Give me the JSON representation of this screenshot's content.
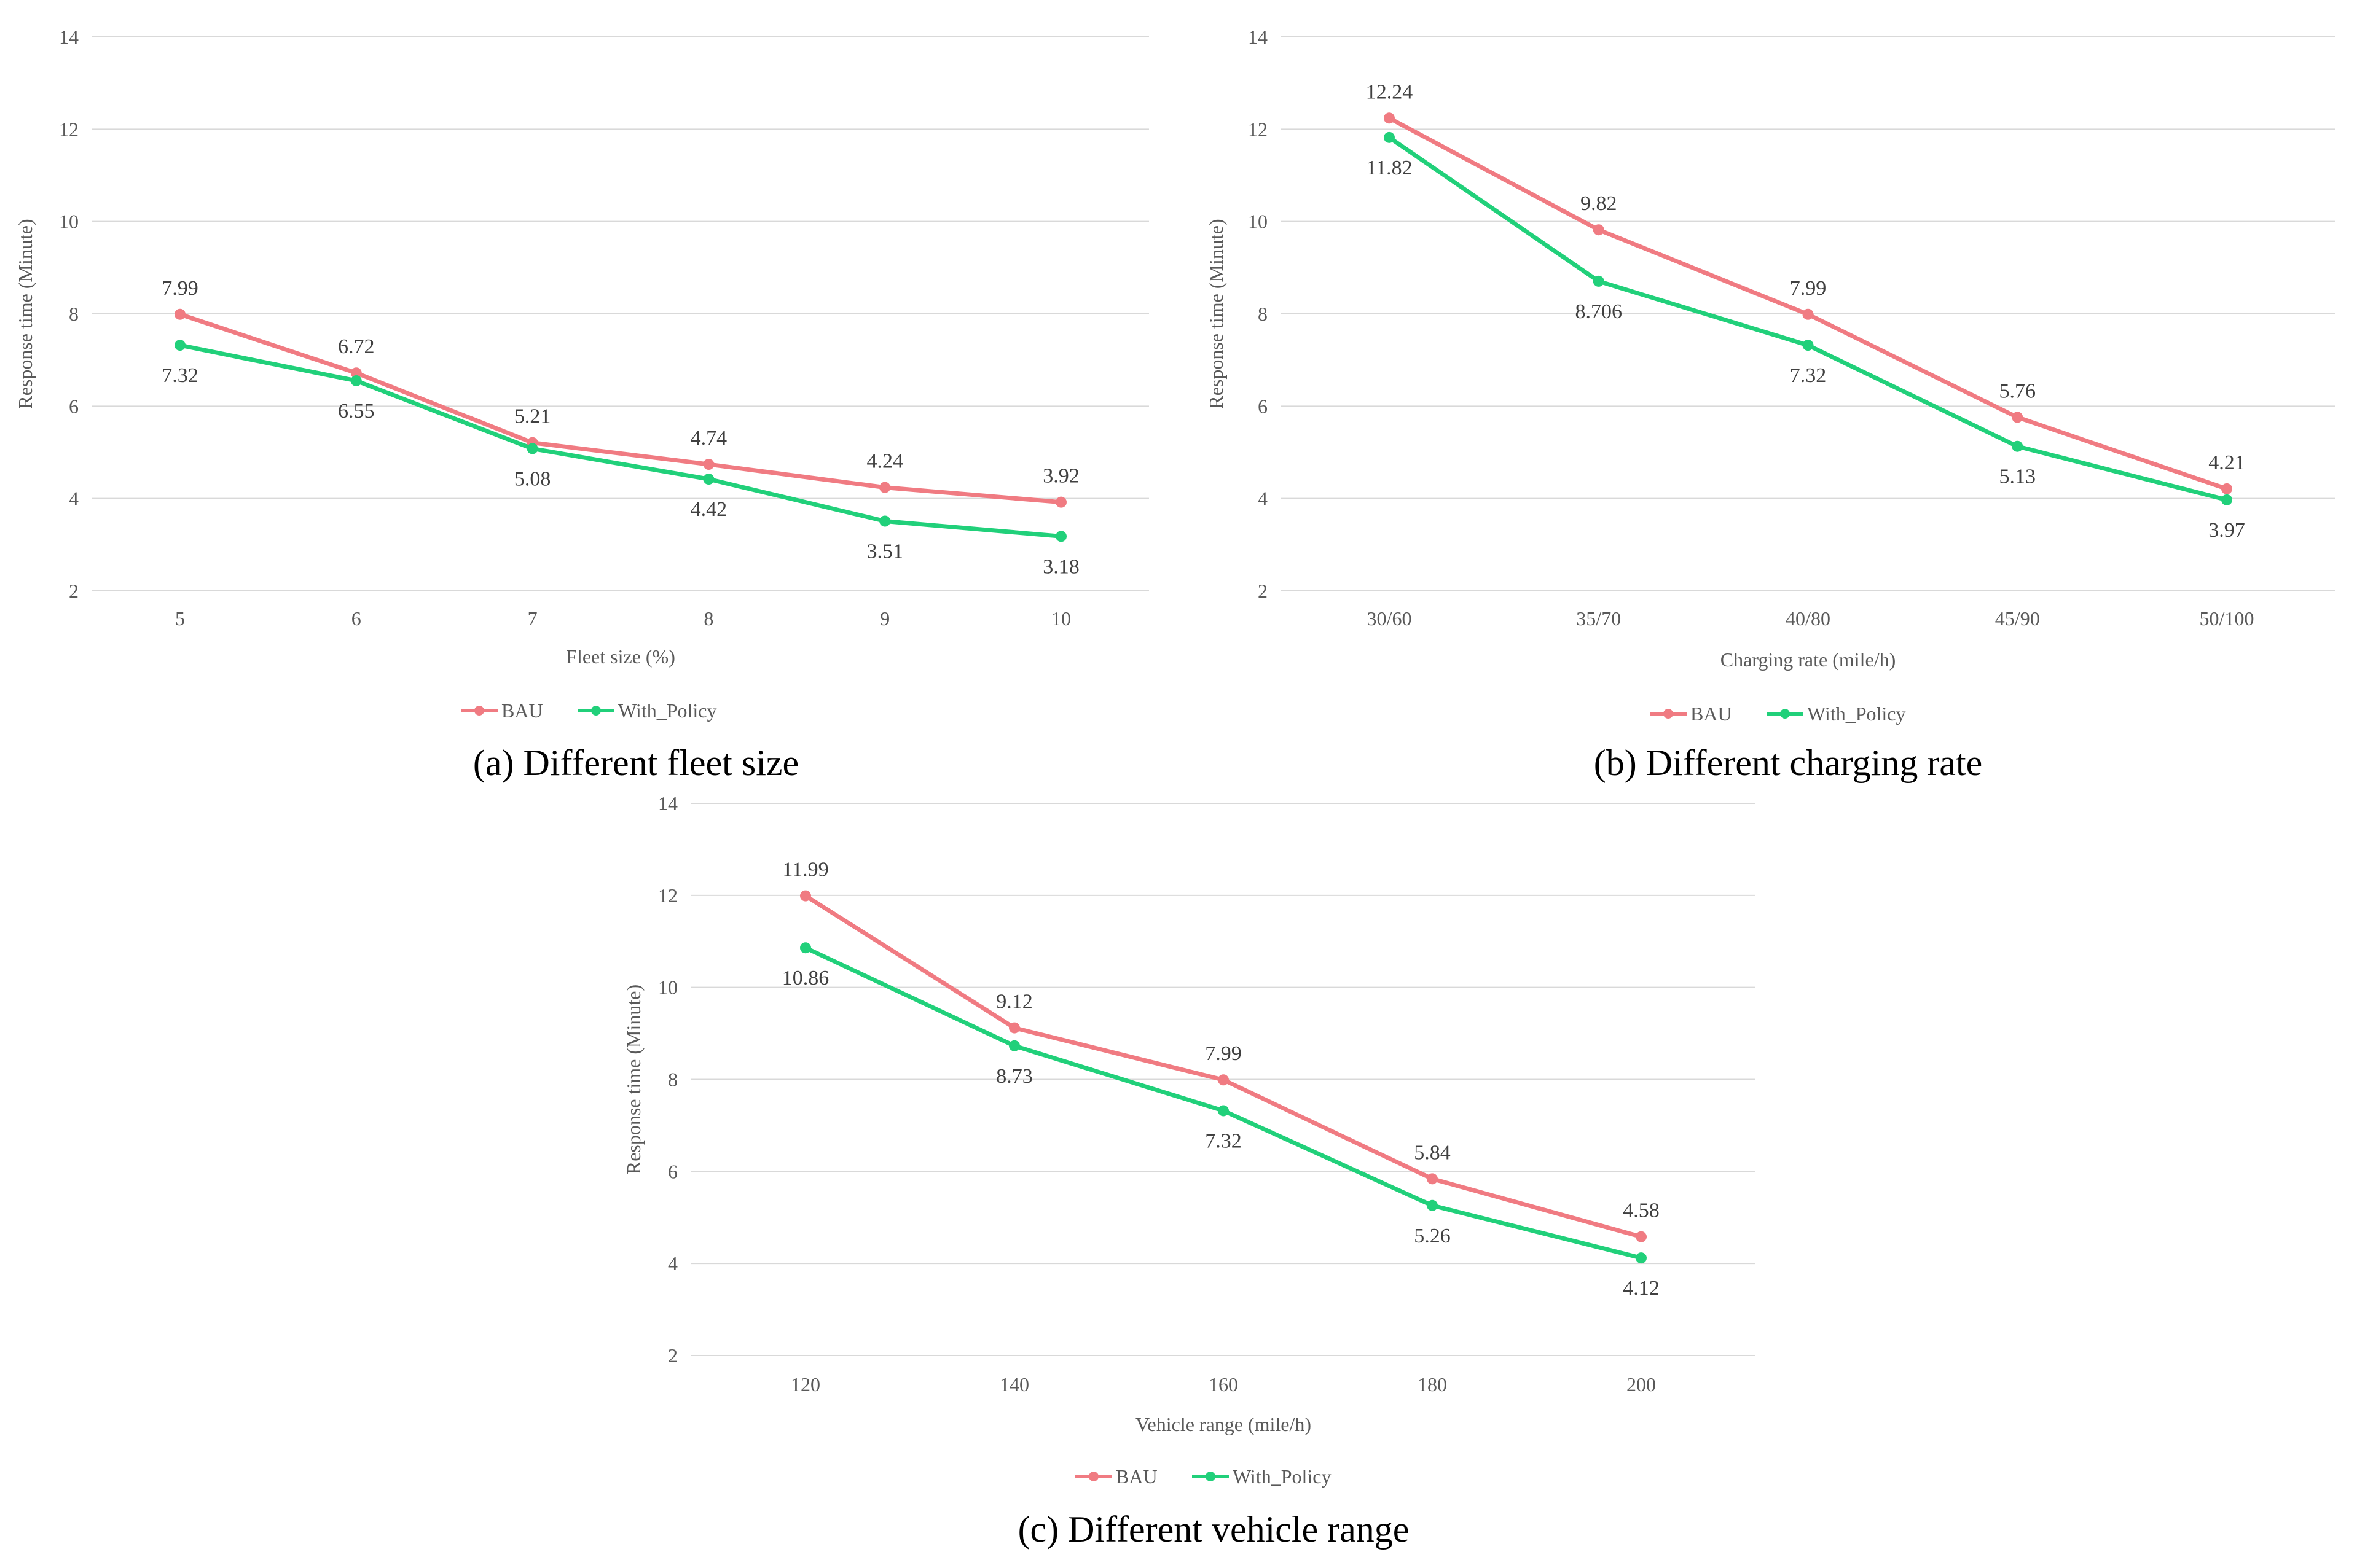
{
  "colors": {
    "bau": "#f07b82",
    "policy": "#21d07a",
    "grid": "#d9d9d9",
    "text": "#595959"
  },
  "chart_data": [
    {
      "type": "line",
      "caption": "(a) Different fleet size",
      "categories": [
        "5",
        "6",
        "7",
        "8",
        "9",
        "10"
      ],
      "xlabel": "Fleet size (%)",
      "ylabel": "Response time (Minute)",
      "ylim": [
        2,
        14
      ],
      "yticks": [
        "2",
        "4",
        "6",
        "8",
        "10",
        "12",
        "14"
      ],
      "grid": true,
      "legend_position": "bottom",
      "series": [
        {
          "name": "BAU",
          "values": [
            7.99,
            6.72,
            5.21,
            4.74,
            4.24,
            3.92
          ],
          "labels": [
            "7.99",
            "6.72",
            "5.21",
            "4.74",
            "4.24",
            "3.92"
          ],
          "color": "#f07b82"
        },
        {
          "name": "With_Policy",
          "values": [
            7.32,
            6.55,
            5.08,
            4.42,
            3.51,
            3.18
          ],
          "labels": [
            "7.32",
            "6.55",
            "5.08",
            "4.42",
            "3.51",
            "3.18"
          ],
          "color": "#21d07a"
        }
      ]
    },
    {
      "type": "line",
      "caption": "(b) Different charging rate",
      "categories": [
        "30/60",
        "35/70",
        "40/80",
        "45/90",
        "50/100"
      ],
      "xlabel": "Charging rate (mile/h)",
      "ylabel": "Response time (Minute)",
      "ylim": [
        2,
        14
      ],
      "yticks": [
        "2",
        "4",
        "6",
        "8",
        "10",
        "12",
        "14"
      ],
      "grid": true,
      "legend_position": "bottom",
      "series": [
        {
          "name": "BAU",
          "values": [
            12.24,
            9.82,
            7.99,
            5.76,
            4.21
          ],
          "labels": [
            "12.24",
            "9.82",
            "7.99",
            "5.76",
            "4.21"
          ],
          "color": "#f07b82"
        },
        {
          "name": "With_Policy",
          "values": [
            11.82,
            8.706,
            7.32,
            5.13,
            3.97
          ],
          "labels": [
            "11.82",
            "8.706",
            "7.32",
            "5.13",
            "3.97"
          ],
          "color": "#21d07a"
        }
      ]
    },
    {
      "type": "line",
      "caption": "(c) Different vehicle range",
      "categories": [
        "120",
        "140",
        "160",
        "180",
        "200"
      ],
      "xlabel": "Vehicle range (mile/h)",
      "ylabel": "Response time (Minute)",
      "ylim": [
        2,
        14
      ],
      "yticks": [
        "2",
        "4",
        "6",
        "8",
        "10",
        "12",
        "14"
      ],
      "grid": true,
      "legend_position": "bottom",
      "series": [
        {
          "name": "BAU",
          "values": [
            11.99,
            9.12,
            7.99,
            5.84,
            4.58
          ],
          "labels": [
            "11.99",
            "9.12",
            "7.99",
            "5.84",
            "4.58"
          ],
          "color": "#f07b82"
        },
        {
          "name": "With_Policy",
          "values": [
            10.86,
            8.73,
            7.32,
            5.26,
            4.12
          ],
          "labels": [
            "10.86",
            "8.73",
            "7.32",
            "5.26",
            "4.12"
          ],
          "color": "#21d07a"
        }
      ]
    }
  ]
}
